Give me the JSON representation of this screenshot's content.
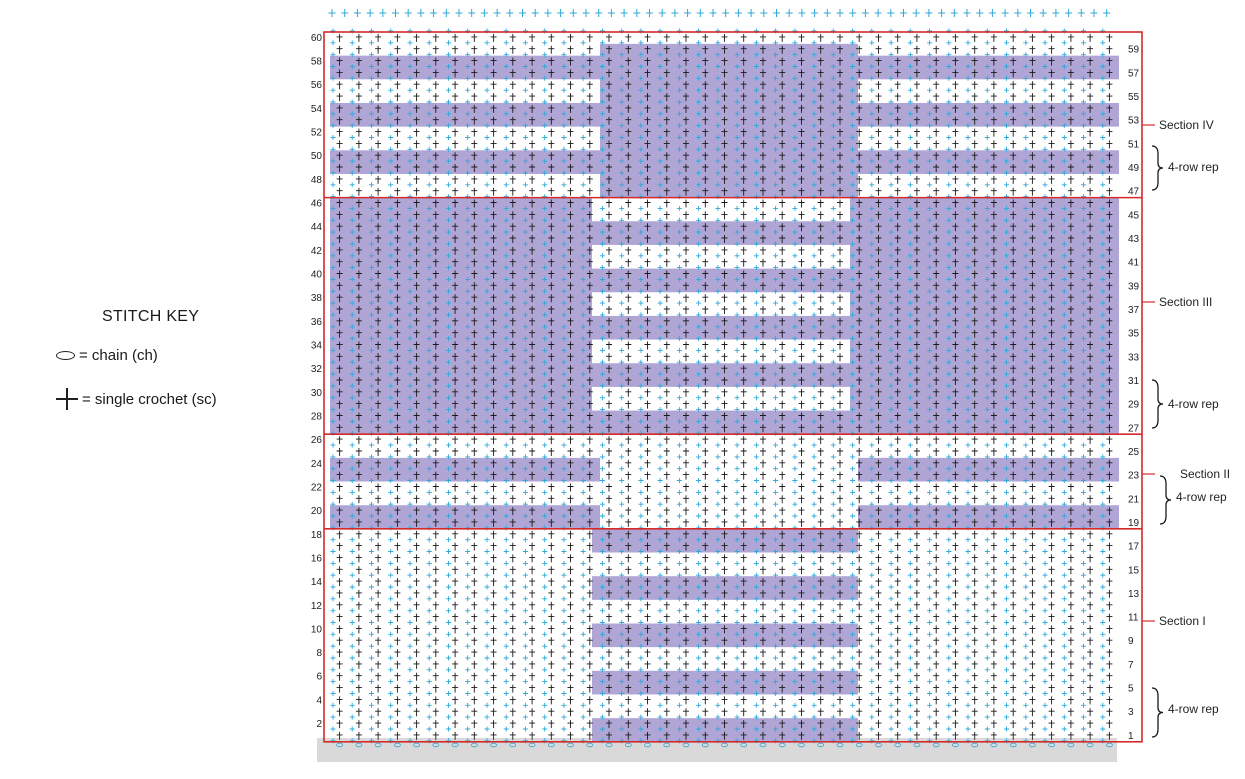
{
  "key": {
    "title": "STITCH KEY",
    "chain": {
      "symbol": "chain-icon",
      "label": "= chain (ch)"
    },
    "sc": {
      "symbol": "single-crochet-icon",
      "label": "= single crochet (sc)"
    }
  },
  "chart": {
    "rows": 60,
    "stitches_per_row": 41,
    "colors": {
      "shade": "#b0a6d6",
      "border": "#d42a2a",
      "stitch_dark": "#1a1a1a",
      "stitch_light": "#2fa8d9",
      "base_row": "#d9d9d9"
    },
    "left_row_numbers": [
      60,
      58,
      56,
      54,
      52,
      50,
      48,
      46,
      44,
      42,
      40,
      38,
      36,
      34,
      32,
      30,
      28,
      26,
      24,
      22,
      20,
      18,
      16,
      14,
      12,
      10,
      8,
      6,
      4,
      2
    ],
    "right_row_numbers": [
      59,
      57,
      55,
      53,
      51,
      49,
      47,
      45,
      43,
      41,
      39,
      37,
      35,
      33,
      31,
      29,
      27,
      25,
      23,
      21,
      19,
      17,
      15,
      13,
      11,
      9,
      7,
      5,
      3,
      1
    ],
    "sections": [
      {
        "label": "Section IV",
        "rows": [
          47,
          60
        ],
        "rep_label": "4-row rep"
      },
      {
        "label": "Section III",
        "rows": [
          27,
          46
        ],
        "rep_label": "4-row rep"
      },
      {
        "label": "Section II",
        "rows": [
          19,
          26
        ],
        "rep_label": "4-row rep"
      },
      {
        "label": "Section I",
        "rows": [
          1,
          18
        ],
        "rep_label": "4-row rep"
      }
    ]
  }
}
